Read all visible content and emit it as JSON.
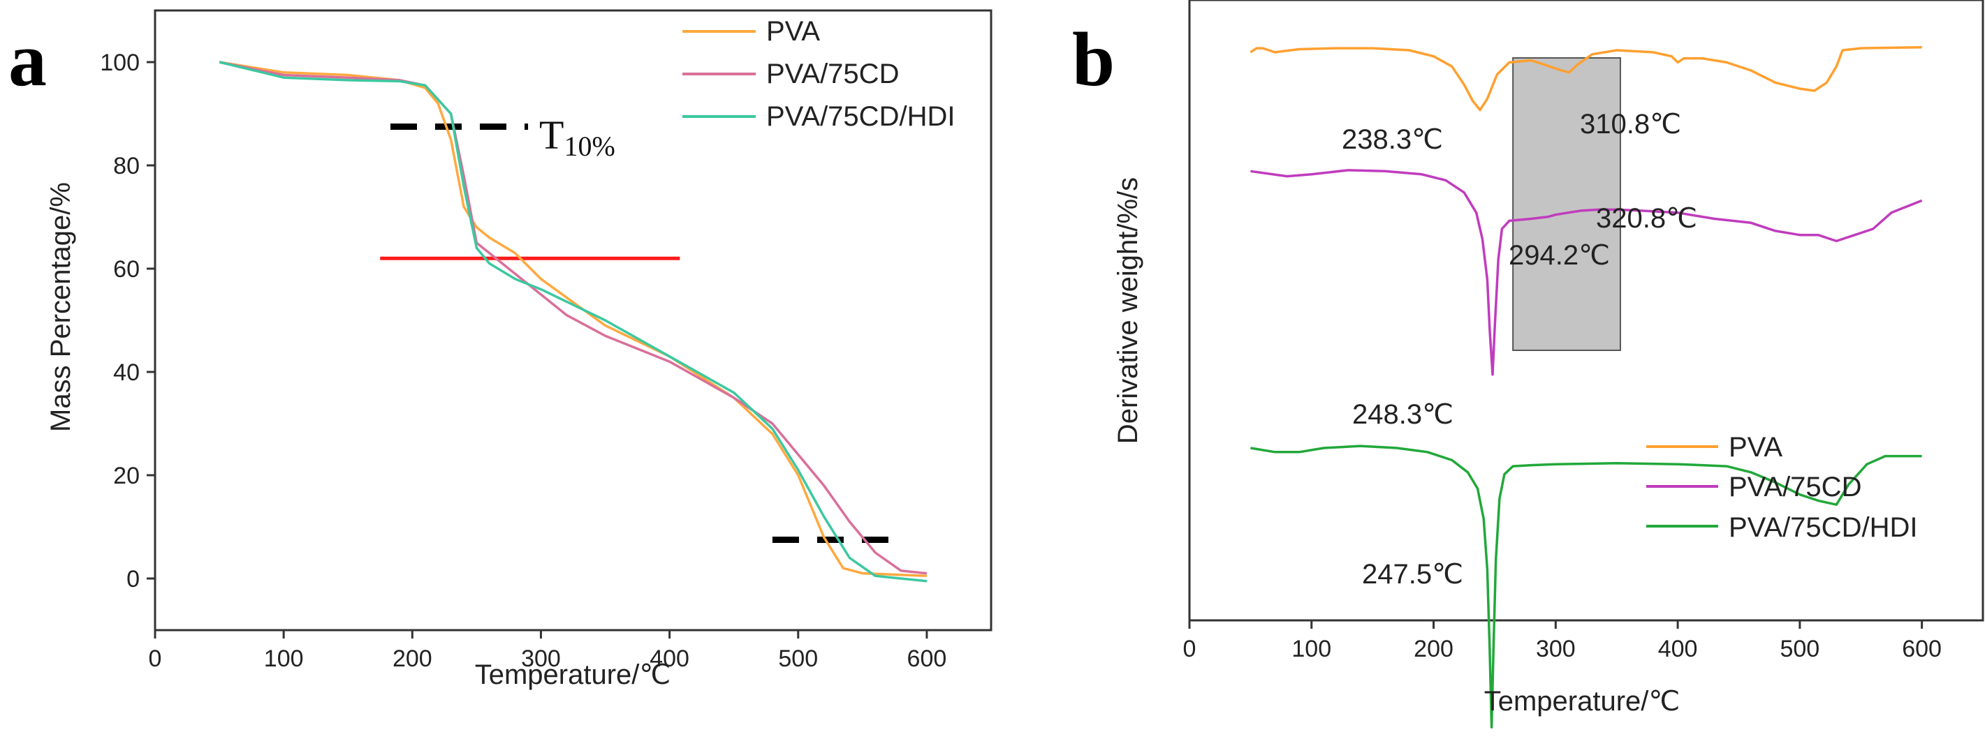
{
  "chart_data": [
    {
      "panel": "a",
      "type": "line",
      "xlabel": "Temperature/℃",
      "ylabel": "Mass Percentage/%",
      "xlim": [
        0,
        650
      ],
      "ylim": [
        -10,
        110
      ],
      "xticks": [
        0,
        100,
        200,
        300,
        400,
        500,
        600
      ],
      "yticks": [
        0,
        20,
        40,
        60,
        80,
        100
      ],
      "legend_position": "top-right",
      "annotation_label": {
        "main": "T",
        "sub": "10%"
      },
      "reference_lines": [
        {
          "name": "t10-dash-line",
          "style": "dashed",
          "color": "#000000",
          "x": [
            183,
            290
          ],
          "y": 87.5
        },
        {
          "name": "red-line",
          "style": "solid",
          "color": "#ff1a1a",
          "x": [
            175,
            408
          ],
          "y": 62
        },
        {
          "name": "end-dash-line",
          "style": "dashed",
          "color": "#000000",
          "x": [
            480,
            578
          ],
          "y": 7.5
        }
      ],
      "series": [
        {
          "name": "PVA",
          "color": "#ffa940",
          "x": [
            50,
            100,
            150,
            190,
            210,
            220,
            230,
            240,
            250,
            260,
            280,
            300,
            350,
            400,
            450,
            480,
            500,
            520,
            535,
            550,
            600
          ],
          "y": [
            100,
            98,
            97.5,
            96.5,
            95,
            92,
            85,
            72,
            68,
            66,
            63,
            58,
            49,
            43,
            35,
            28,
            20,
            8,
            2,
            1,
            0.5
          ]
        },
        {
          "name": "PVA/75CD",
          "color": "#d9709a",
          "x": [
            50,
            100,
            150,
            190,
            210,
            230,
            240,
            250,
            260,
            280,
            300,
            320,
            350,
            400,
            450,
            480,
            500,
            520,
            540,
            560,
            580,
            600
          ],
          "y": [
            100,
            97.5,
            97,
            96.5,
            95.5,
            90,
            78,
            65,
            63,
            59,
            55,
            51,
            47,
            42,
            35,
            30,
            24,
            18,
            11,
            5,
            1.5,
            1
          ]
        },
        {
          "name": "PVA/75CD/HDI",
          "color": "#3cc8a0",
          "x": [
            50,
            100,
            150,
            190,
            210,
            230,
            240,
            250,
            260,
            280,
            300,
            350,
            400,
            450,
            480,
            500,
            520,
            540,
            560,
            600
          ],
          "y": [
            100,
            97,
            96.5,
            96.3,
            95.5,
            90,
            76,
            64,
            61,
            58,
            56,
            50,
            43,
            36,
            29,
            21,
            12,
            4,
            0.5,
            -0.5
          ]
        }
      ]
    },
    {
      "panel": "b",
      "type": "line",
      "xlabel": "Temperature/℃",
      "ylabel": "Derivative weight/%/s",
      "xlim": [
        0,
        650
      ],
      "xticks": [
        0,
        100,
        200,
        300,
        400,
        500,
        600
      ],
      "yticks": [],
      "legend_position": "bottom-right",
      "highlight_box": {
        "x": [
          265,
          353
        ],
        "fill": "#c4c4c4"
      },
      "annotations": [
        {
          "text": "238.3℃",
          "series": "PVA"
        },
        {
          "text": "310.8℃",
          "series": "PVA"
        },
        {
          "text": "320.8℃",
          "series": "PVA/75CD"
        },
        {
          "text": "294.2℃",
          "series": "PVA/75CD"
        },
        {
          "text": "248.3℃",
          "series": "PVA/75CD"
        },
        {
          "text": "247.5℃",
          "series": "PVA/75CD/HDI"
        }
      ],
      "series": [
        {
          "name": "PVA",
          "color": "#ffa030",
          "x": [
            50,
            55,
            60,
            70,
            90,
            120,
            150,
            180,
            200,
            215,
            225,
            232,
            238,
            244,
            252,
            262,
            280,
            295,
            305,
            311,
            318,
            330,
            350,
            380,
            395,
            400,
            405,
            420,
            440,
            460,
            480,
            500,
            512,
            522,
            530,
            535,
            550,
            600
          ],
          "y": [
            -1,
            1,
            1,
            -1,
            0.5,
            1,
            1,
            0,
            -3,
            -8,
            -17,
            -25,
            -29.5,
            -24,
            -12,
            -6,
            -5,
            -8,
            -10,
            -11,
            -7,
            -2,
            0,
            -1,
            -3,
            -6,
            -4,
            -4,
            -6,
            -10,
            -16,
            -19,
            -20,
            -16,
            -8,
            0,
            1,
            1.5
          ]
        },
        {
          "name": "PVA/75CD",
          "color": "#c03cbd",
          "x": [
            50,
            80,
            100,
            130,
            160,
            190,
            210,
            225,
            235,
            240,
            244,
            246,
            248.3,
            250,
            253,
            256,
            262,
            280,
            294,
            300,
            310,
            321,
            335,
            350,
            370,
            400,
            430,
            460,
            480,
            500,
            515,
            525,
            530,
            545,
            560,
            575,
            600
          ],
          "y": [
            -1.5,
            -4,
            -3,
            -1,
            -1.5,
            -3,
            -6,
            -12,
            -22,
            -35,
            -55,
            -80,
            -102,
            -80,
            -45,
            -30,
            -26,
            -25,
            -24,
            -23,
            -22,
            -21,
            -20.5,
            -20.5,
            -21,
            -22,
            -25,
            -27,
            -31,
            -33,
            -33,
            -35,
            -36,
            -33,
            -30,
            -22,
            -16
          ]
        },
        {
          "name": "PVA/75CD/HDI",
          "color": "#22a83a",
          "x": [
            50,
            70,
            90,
            110,
            140,
            170,
            195,
            215,
            228,
            236,
            241,
            244,
            246,
            247.5,
            249,
            251,
            254,
            258,
            265,
            280,
            300,
            350,
            400,
            420,
            440,
            460,
            480,
            500,
            515,
            530,
            540,
            555,
            570,
            600
          ],
          "y": [
            -40,
            -42,
            -42,
            -40,
            -39,
            -40,
            -42,
            -46,
            -52,
            -60,
            -75,
            -100,
            -140,
            -178,
            -140,
            -95,
            -65,
            -53,
            -49,
            -48.5,
            -48,
            -47.5,
            -48,
            -48.5,
            -49,
            -52,
            -57,
            -63,
            -66,
            -68,
            -58,
            -48,
            -44,
            -44
          ]
        }
      ]
    }
  ]
}
